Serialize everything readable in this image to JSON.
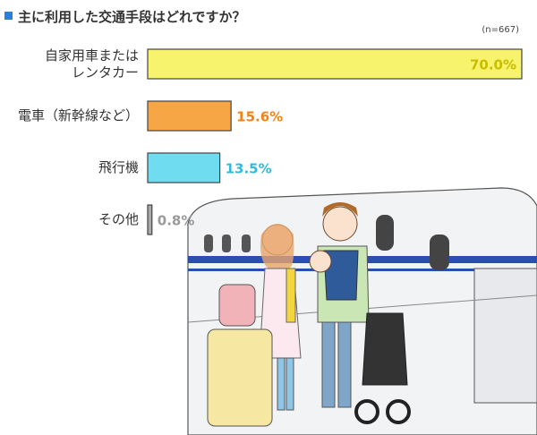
{
  "chart_data": {
    "type": "hbar",
    "title": "主に利用した交通手段はどれですか？",
    "subtitle": "(n=667)",
    "categories": [
      "自家用車または\nレンタカー",
      "電車（新幹線など）",
      "飛行機",
      "その他"
    ],
    "values": [
      70.0,
      15.6,
      13.5,
      0.8
    ],
    "value_labels": [
      "70.0%",
      "15.6%",
      "13.5%",
      "0.8%"
    ],
    "colors": [
      "#f8f36c",
      "#f7a645",
      "#6fdcf0",
      "#a9a9a9"
    ],
    "label_colors": [
      "#c8bd00",
      "#f0831a",
      "#35b9de",
      "#9a9a9a"
    ],
    "xlim": [
      0,
      70
    ]
  }
}
